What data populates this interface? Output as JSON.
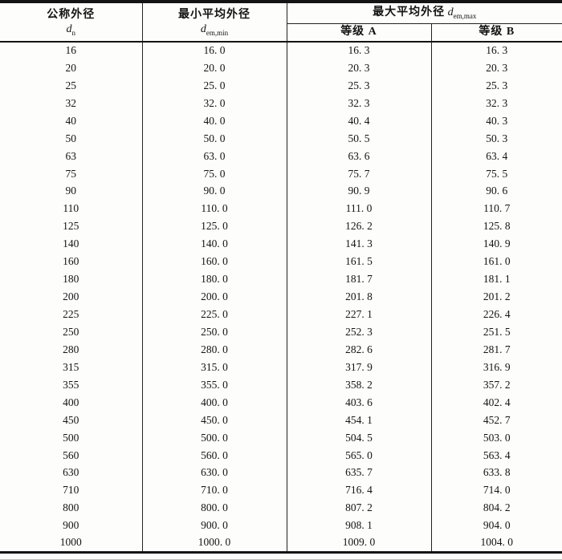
{
  "table": {
    "header": {
      "col1": {
        "label": "公称外径",
        "symbol": "d",
        "subscript": "n"
      },
      "col2": {
        "label": "最小平均外径",
        "symbol": "d",
        "subscript": "em,min"
      },
      "col3": {
        "label": "最大平均外径",
        "symbol": "d",
        "subscript": "em,max"
      },
      "grade_a": "等级 A",
      "grade_b": "等级 B"
    },
    "columns": [
      "公称外径 dn",
      "最小平均外径 dem,min",
      "最大平均外径 dem,max 等级 A",
      "最大平均外径 dem,max 等级 B"
    ],
    "rows": [
      [
        "16",
        "16. 0",
        "16. 3",
        "16. 3"
      ],
      [
        "20",
        "20. 0",
        "20. 3",
        "20. 3"
      ],
      [
        "25",
        "25. 0",
        "25. 3",
        "25. 3"
      ],
      [
        "32",
        "32. 0",
        "32. 3",
        "32. 3"
      ],
      [
        "40",
        "40. 0",
        "40. 4",
        "40. 3"
      ],
      [
        "50",
        "50. 0",
        "50. 5",
        "50. 3"
      ],
      [
        "63",
        "63. 0",
        "63. 6",
        "63. 4"
      ],
      [
        "75",
        "75. 0",
        "75. 7",
        "75. 5"
      ],
      [
        "90",
        "90. 0",
        "90. 9",
        "90. 6"
      ],
      [
        "110",
        "110. 0",
        "111. 0",
        "110. 7"
      ],
      [
        "125",
        "125. 0",
        "126. 2",
        "125. 8"
      ],
      [
        "140",
        "140. 0",
        "141. 3",
        "140. 9"
      ],
      [
        "160",
        "160. 0",
        "161. 5",
        "161. 0"
      ],
      [
        "180",
        "180. 0",
        "181. 7",
        "181. 1"
      ],
      [
        "200",
        "200. 0",
        "201. 8",
        "201. 2"
      ],
      [
        "225",
        "225. 0",
        "227. 1",
        "226. 4"
      ],
      [
        "250",
        "250. 0",
        "252. 3",
        "251. 5"
      ],
      [
        "280",
        "280. 0",
        "282. 6",
        "281. 7"
      ],
      [
        "315",
        "315. 0",
        "317. 9",
        "316. 9"
      ],
      [
        "355",
        "355. 0",
        "358. 2",
        "357. 2"
      ],
      [
        "400",
        "400. 0",
        "403. 6",
        "402. 4"
      ],
      [
        "450",
        "450. 0",
        "454. 1",
        "452. 7"
      ],
      [
        "500",
        "500. 0",
        "504. 5",
        "503. 0"
      ],
      [
        "560",
        "560. 0",
        "565. 0",
        "563. 4"
      ],
      [
        "630",
        "630. 0",
        "635. 7",
        "633. 8"
      ],
      [
        "710",
        "710. 0",
        "716. 4",
        "714. 0"
      ],
      [
        "800",
        "800. 0",
        "807. 2",
        "804. 2"
      ],
      [
        "900",
        "900. 0",
        "908. 1",
        "904. 0"
      ],
      [
        "1000",
        "1000. 0",
        "1009. 0",
        "1004. 0"
      ]
    ]
  }
}
